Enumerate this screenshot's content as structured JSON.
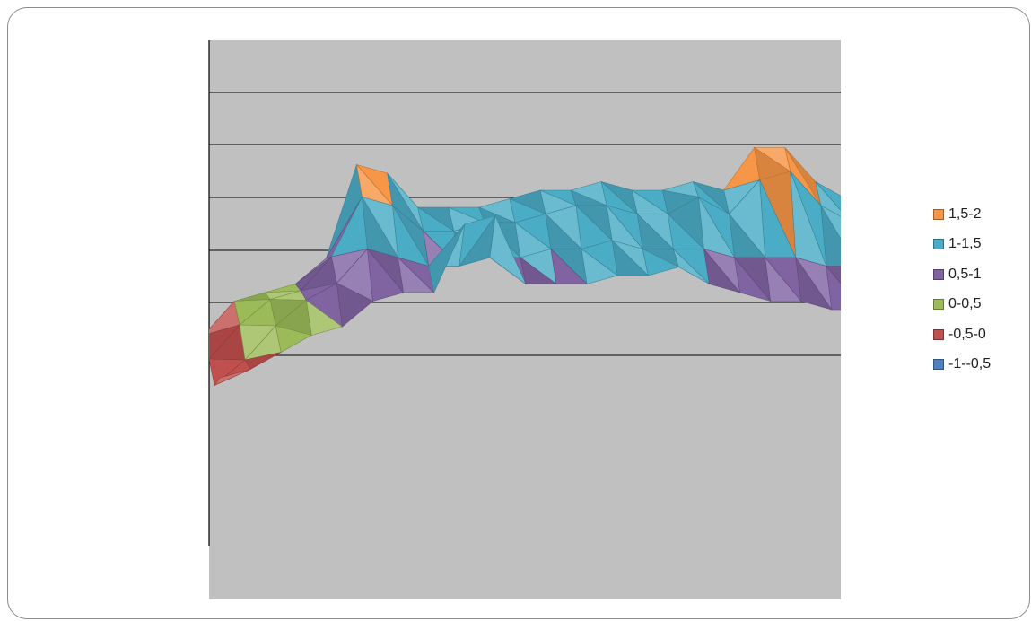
{
  "chart_data": {
    "type": "surface",
    "title": "",
    "grid": true,
    "legend_position": "right",
    "band_size": 0.5,
    "legend": [
      {
        "label": "1,5-2",
        "range": [
          1.5,
          2.0
        ],
        "color": "#F79646"
      },
      {
        "label": "1-1,5",
        "range": [
          1.0,
          1.5
        ],
        "color": "#4BACC6"
      },
      {
        "label": "0,5-1",
        "range": [
          0.5,
          1.0
        ],
        "color": "#8064A2"
      },
      {
        "label": "0-0,5",
        "range": [
          0.0,
          0.5
        ],
        "color": "#9BBB59"
      },
      {
        "label": "-0,5-0",
        "range": [
          -0.5,
          0.0
        ],
        "color": "#C0504D"
      },
      {
        "label": "-1--0,5",
        "range": [
          -1.0,
          -0.5
        ],
        "color": "#4F81BD"
      }
    ],
    "zlim": [
      -1,
      2
    ],
    "grid_values": [
      [
        -0.3,
        0.1,
        0.2,
        0.3,
        0.6,
        1.7,
        1.6,
        1.2,
        1.2,
        1.2,
        1.3,
        1.4,
        1.4,
        1.5,
        1.4,
        1.4,
        1.5,
        1.4,
        1.9,
        1.9,
        1.5,
        1.3
      ],
      [
        -0.4,
        0.0,
        0.3,
        0.4,
        0.8,
        1.5,
        1.4,
        1.1,
        1.1,
        1.2,
        1.2,
        1.3,
        1.4,
        1.4,
        1.3,
        1.3,
        1.5,
        1.3,
        1.7,
        1.8,
        1.4,
        1.2
      ],
      [
        -0.5,
        -0.2,
        0.2,
        0.5,
        0.7,
        1.1,
        1.0,
        0.9,
        0.9,
        1.0,
        1.0,
        1.1,
        1.1,
        1.2,
        1.1,
        1.1,
        1.1,
        1.0,
        1.0,
        1.0,
        0.9,
        0.9
      ],
      [
        -0.2,
        -0.1,
        0.1,
        0.3,
        0.4,
        0.7,
        0.8,
        0.8,
        1.6,
        1.7,
        0.9,
        0.9,
        0.9,
        1.0,
        1.0,
        1.1,
        0.9,
        0.8,
        0.7,
        0.7,
        0.6,
        0.6
      ]
    ]
  }
}
